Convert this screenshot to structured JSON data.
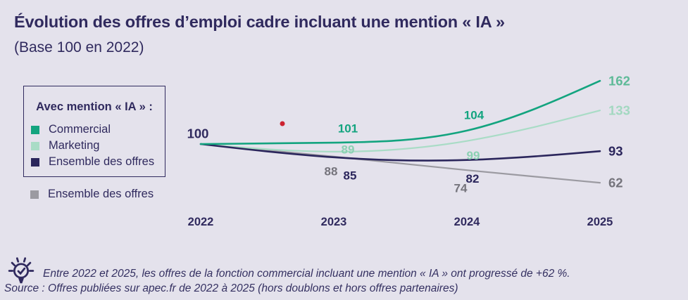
{
  "colors": {
    "background": "#e4e2ec",
    "text_primary": "#302a5e",
    "marker_red": "#cc2231"
  },
  "header": {
    "title": "Évolution des offres d’emploi cadre incluant une mention « IA »",
    "subtitle": "(Base 100 en 2022)"
  },
  "legend": {
    "box_title": "Avec mention « IA » :",
    "items": [
      {
        "label": "Commercial",
        "color": "#13a47f"
      },
      {
        "label": "Marketing",
        "color": "#a9dcc6"
      },
      {
        "label": "Ensemble des offres",
        "color": "#2b265c"
      }
    ],
    "outside_item": {
      "label": "Ensemble des offres",
      "color": "#9b9aa1"
    }
  },
  "chart_data": {
    "type": "line",
    "curve": "basis",
    "grid": false,
    "legend_position": "left",
    "categories": [
      "2022",
      "2023",
      "2024",
      "2025"
    ],
    "base_value_label": "100",
    "ylim": [
      55,
      170
    ],
    "series": [
      {
        "name": "Commercial",
        "mention_ia": true,
        "values": [
          100,
          101,
          104,
          162
        ],
        "color": "#13a47f",
        "label_color": "#13a47f",
        "end_label_color": "#5eba98"
      },
      {
        "name": "Marketing",
        "mention_ia": true,
        "values": [
          100,
          89,
          99,
          133
        ],
        "color": "#a9dcc6",
        "label_color": "#8bd1b3",
        "end_label_color": "#a3d8c1"
      },
      {
        "name": "Ensemble des offres",
        "mention_ia": true,
        "values": [
          100,
          85,
          82,
          93
        ],
        "color": "#2b265c",
        "label_color": "#2b265c",
        "end_label_color": "#2b265c"
      },
      {
        "name": "Ensemble des offres",
        "mention_ia": false,
        "values": [
          100,
          88,
          74,
          62
        ],
        "color": "#9b9aa1",
        "label_color": "#75747c",
        "end_label_color": "#75747c"
      }
    ],
    "marker": {
      "shape": "dot",
      "color": "#cc2231"
    }
  },
  "footer": {
    "insight": "Entre 2022 et 2025, les offres de la fonction commercial incluant une mention « IA » ont progressé de +62 %.",
    "source": "Source : Offres publiées sur apec.fr de 2022 à 2025 (hors doublons et hors offres partenaires)"
  }
}
